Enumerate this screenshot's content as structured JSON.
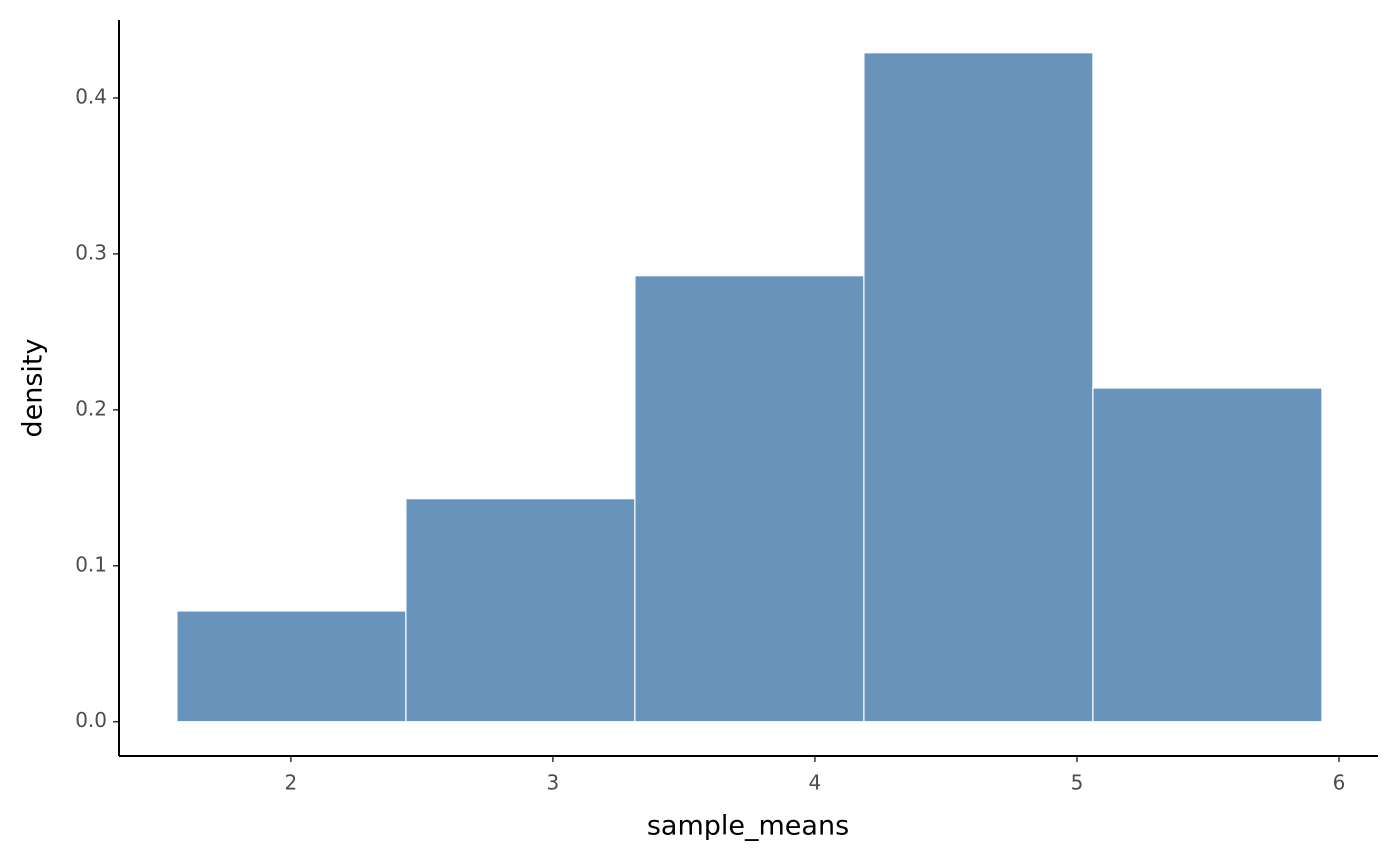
{
  "chart_data": {
    "type": "histogram",
    "x_label": "sample_means",
    "y_label": "density",
    "bins": [
      1.565,
      2.439,
      3.313,
      4.187,
      5.061,
      5.935
    ],
    "values": [
      0.071,
      0.143,
      0.286,
      0.429,
      0.214
    ],
    "color": "#6893bb",
    "xlim": [
      1.344,
      6.149
    ],
    "xticks": [
      2,
      3,
      4,
      5,
      6
    ],
    "ylim": [
      -0.022,
      0.45
    ],
    "yticks": [
      {
        "value": 0,
        "label": "0.0"
      },
      0.1,
      0.2,
      0.3,
      0.4
    ],
    "grid": false
  }
}
